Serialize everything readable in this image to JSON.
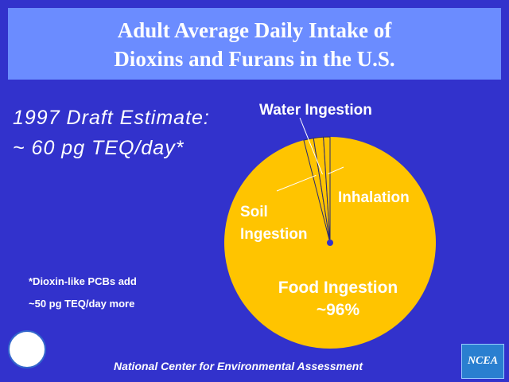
{
  "chart_data": {
    "type": "pie",
    "title": "Adult Average Daily Intake of Dioxins and Furans in the U.S.",
    "estimate": [
      "1997 Draft Estimate:",
      "~ 60 pg TEQ/day*"
    ],
    "footnote": [
      "*Dioxin-like PCBs add",
      "~50 pg TEQ/day more"
    ],
    "categories": [
      "Food Ingestion",
      "Soil Ingestion",
      "Water Ingestion",
      "Inhalation"
    ],
    "values": [
      96,
      1.5,
      1.5,
      1
    ],
    "value_labels": [
      "~96%",
      null,
      null,
      null
    ],
    "color": "#ffc400"
  },
  "footer": {
    "org": "National Center for Environmental Assessment",
    "logo": "NCEA"
  }
}
